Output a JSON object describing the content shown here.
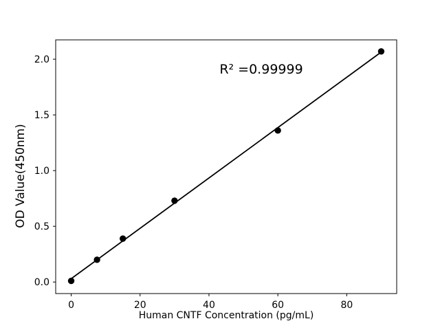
{
  "chart_data": {
    "type": "scatter",
    "title": "",
    "xlabel": "Human CNTF Concentration (pg/mL)",
    "ylabel": "OD Value(450nm)",
    "annotation": "R² =0.99999",
    "r_squared": 0.99999,
    "x": [
      0,
      7.5,
      15,
      30,
      60,
      90
    ],
    "y": [
      0.01,
      0.2,
      0.39,
      0.73,
      1.36,
      2.07
    ],
    "trendline": {
      "slope": 0.0226,
      "intercept": 0.03,
      "x_start": 0,
      "x_end": 90
    },
    "xlim": [
      -4.5,
      94.5
    ],
    "ylim": [
      -0.1035,
      2.1735
    ],
    "xticks": [
      0,
      20,
      40,
      60,
      80
    ],
    "xtick_labels": [
      "0",
      "20",
      "40",
      "60",
      "80"
    ],
    "yticks": [
      0.0,
      0.5,
      1.0,
      1.5,
      2.0
    ],
    "ytick_labels": [
      "0.0",
      "0.5",
      "1.0",
      "1.5",
      "2.0"
    ],
    "grid": false,
    "legend": null,
    "marker_color": "#000000",
    "line_color": "#000000",
    "axis_color": "#000000",
    "background_color": "#ffffff"
  }
}
